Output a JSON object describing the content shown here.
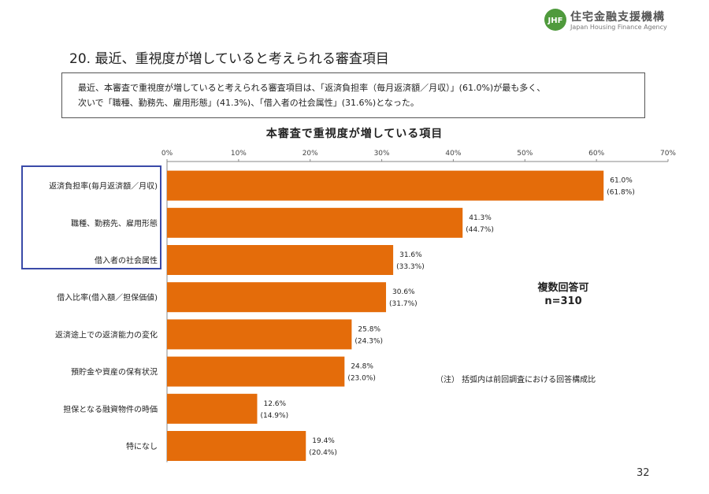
{
  "logo": {
    "jp": "住宅金融支援機構",
    "en": "Japan Housing Finance Agency",
    "mark": "JHF"
  },
  "page_heading": "20. 最近、重視度が増していると考えられる審査項目",
  "summary": {
    "line1": "最近、本審査で重視度が増していると考えられる審査項目は、「返済負担率（毎月返済額／月収）」(61.0%)が最も多く、",
    "line2": "次いで「職種、勤務先、雇用形態」(41.3%)、「借入者の社会属性」(31.6%)となった。"
  },
  "chart_data": {
    "type": "bar",
    "orientation": "horizontal",
    "title": "本審査で重視度が増している項目",
    "categories": [
      "返済負担率(毎月返済額／月収)",
      "職種、勤務先、雇用形態",
      "借入者の社会属性",
      "借入比率(借入額／担保価値)",
      "返済途上での返済能力の変化",
      "預貯金や資産の保有状況",
      "担保となる融資物件の時価",
      "特になし"
    ],
    "values": [
      61.0,
      41.3,
      31.6,
      30.6,
      25.8,
      24.8,
      12.6,
      19.4
    ],
    "previous_values": [
      61.8,
      44.7,
      33.3,
      31.7,
      24.3,
      23.0,
      14.9,
      20.4
    ],
    "value_labels": [
      "61.0%",
      "41.3%",
      "31.6%",
      "30.6%",
      "25.8%",
      "24.8%",
      "12.6%",
      "19.4%"
    ],
    "previous_labels": [
      "(61.8%)",
      "(44.7%)",
      "(33.3%)",
      "(31.7%)",
      "(24.3%)",
      "(23.0%)",
      "(14.9%)",
      "(20.4%)"
    ],
    "xlim": [
      0,
      70
    ],
    "ticks": [
      0,
      10,
      20,
      30,
      40,
      50,
      60,
      70
    ],
    "tick_labels": [
      "0%",
      "10%",
      "20%",
      "30%",
      "40%",
      "50%",
      "60%",
      "70%"
    ],
    "bar_color": "#e46c0a",
    "highlight_color": "#3a4aa8",
    "highlighted_categories": 3,
    "grid": false
  },
  "annotation": {
    "multi_answer": "複数回答可",
    "sample": "n=310"
  },
  "note": "（注） 括弧内は前回調査における回答構成比",
  "page_number": "32"
}
